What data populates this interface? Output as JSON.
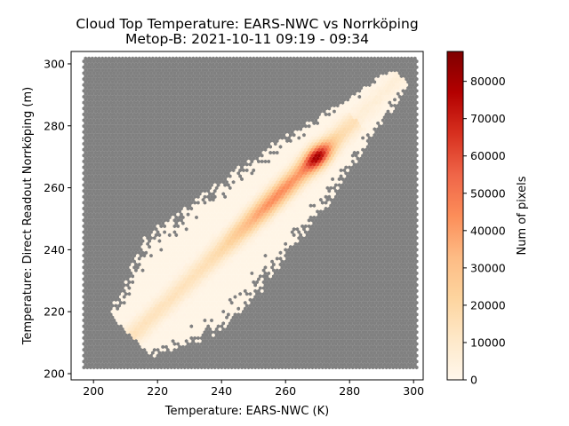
{
  "chart_data": {
    "type": "hexbin",
    "title": "Cloud Top Temperature: EARS-NWC vs Norrköping",
    "subtitle": "Metop-B: 2021-10-11 09:19 - 09:34",
    "xlabel": "Temperature: EARS-NWC (K)",
    "ylabel": "Temperature: Direct Readout Norrköping (m)",
    "xlim": [
      193,
      303
    ],
    "ylim": [
      198,
      304
    ],
    "xticks": [
      "200",
      "220",
      "240",
      "260",
      "280",
      "300"
    ],
    "yticks": [
      "200",
      "220",
      "240",
      "260",
      "280",
      "300"
    ],
    "grid": false,
    "background_color": "#808080",
    "colormap": "OrRd",
    "colorbar": {
      "label": "Num of pixels",
      "min": 0,
      "max": 88000,
      "ticks": [
        "0",
        "10000",
        "20000",
        "30000",
        "40000",
        "50000",
        "60000",
        "70000",
        "80000"
      ]
    },
    "hexbin_extent": {
      "x": [
        197,
        301
      ],
      "y": [
        202,
        302
      ]
    },
    "density_description": {
      "diagonal_peak": [
        [
          255,
          256,
          40000
        ],
        [
          265,
          265,
          60000
        ],
        [
          269,
          270,
          88000
        ],
        [
          260,
          260,
          45000
        ],
        [
          245,
          245,
          25000
        ]
      ],
      "main_axis": "x ≈ y"
    }
  }
}
